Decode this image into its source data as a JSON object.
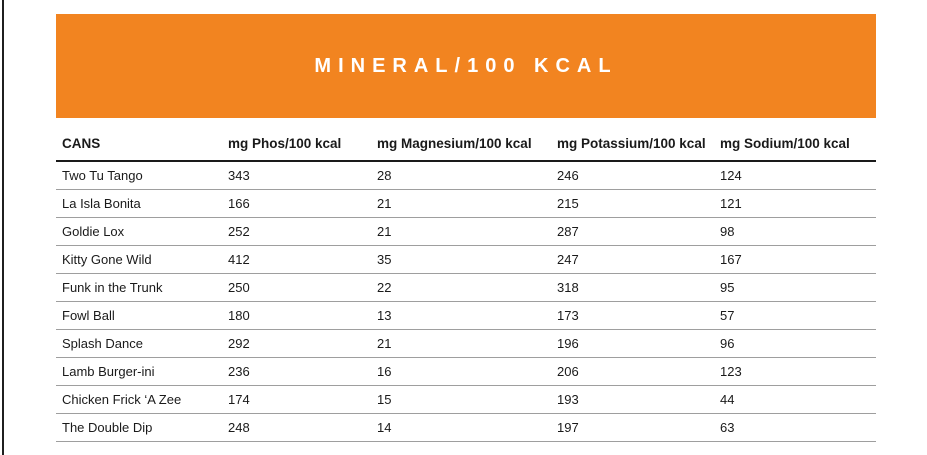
{
  "banner": {
    "title": "MINERAL/100 KCAL",
    "background_color": "#F28420",
    "text_color": "#FFFFFF"
  },
  "style": {
    "header_rule_color": "#1A1A1A",
    "row_separator_color": "#9E9E9E",
    "left_rule_color": "#1F1F1F"
  },
  "chart_data": {
    "type": "table",
    "title": "MINERAL/100 KCAL",
    "columns": [
      "CANS",
      "mg Phos/100 kcal",
      "mg Magnesium/100 kcal",
      "mg Potassium/100 kcal",
      "mg Sodium/100 kcal"
    ],
    "rows": [
      [
        "Two Tu Tango",
        343,
        28,
        246,
        124
      ],
      [
        "La Isla Bonita",
        166,
        21,
        215,
        121
      ],
      [
        "Goldie Lox",
        252,
        21,
        287,
        98
      ],
      [
        "Kitty Gone Wild",
        412,
        35,
        247,
        167
      ],
      [
        "Funk in the Trunk",
        250,
        22,
        318,
        95
      ],
      [
        "Fowl Ball",
        180,
        13,
        173,
        57
      ],
      [
        "Splash Dance",
        292,
        21,
        196,
        96
      ],
      [
        "Lamb Burger-ini",
        236,
        16,
        206,
        123
      ],
      [
        "Chicken Frick ‘A Zee",
        174,
        15,
        193,
        44
      ],
      [
        "The Double Dip",
        248,
        14,
        197,
        63
      ]
    ]
  }
}
